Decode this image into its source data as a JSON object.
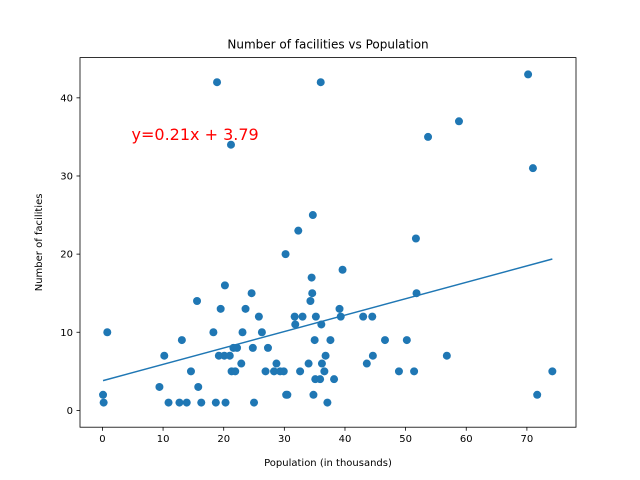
{
  "chart_data": {
    "type": "scatter",
    "title": "Number of facilities vs Population",
    "xlabel": "Population (in thousands)",
    "ylabel": "Number of facilities",
    "xlim": [
      -3.7,
      78.1
    ],
    "ylim": [
      -2.15,
      45.15
    ],
    "xticks": [
      0,
      10,
      20,
      30,
      40,
      50,
      60,
      70
    ],
    "yticks": [
      0,
      10,
      20,
      30,
      40
    ],
    "grid": false,
    "legend": "none",
    "point_color": "#1f77b4",
    "points": [
      [
        0.1,
        2
      ],
      [
        0.2,
        1
      ],
      [
        0.8,
        10
      ],
      [
        9.4,
        3
      ],
      [
        10.2,
        7
      ],
      [
        10.9,
        1
      ],
      [
        12.7,
        1
      ],
      [
        13.1,
        9
      ],
      [
        13.9,
        1
      ],
      [
        14.6,
        5
      ],
      [
        15.6,
        14
      ],
      [
        15.8,
        3
      ],
      [
        16.3,
        1
      ],
      [
        18.3,
        10
      ],
      [
        18.7,
        1
      ],
      [
        18.9,
        42
      ],
      [
        19.2,
        7
      ],
      [
        19.5,
        13
      ],
      [
        20.1,
        7
      ],
      [
        20.2,
        16
      ],
      [
        20.3,
        1
      ],
      [
        21.0,
        7
      ],
      [
        21.2,
        34
      ],
      [
        21.3,
        5
      ],
      [
        21.6,
        8
      ],
      [
        21.9,
        5
      ],
      [
        22.2,
        8
      ],
      [
        22.9,
        6
      ],
      [
        23.1,
        10
      ],
      [
        23.6,
        13
      ],
      [
        24.6,
        15
      ],
      [
        24.8,
        8
      ],
      [
        25.0,
        1
      ],
      [
        25.8,
        12
      ],
      [
        26.3,
        10
      ],
      [
        26.9,
        5
      ],
      [
        27.3,
        8
      ],
      [
        28.3,
        5
      ],
      [
        28.7,
        6
      ],
      [
        29.3,
        5
      ],
      [
        29.9,
        5
      ],
      [
        30.2,
        20
      ],
      [
        30.3,
        2
      ],
      [
        30.5,
        2
      ],
      [
        31.7,
        12
      ],
      [
        31.8,
        11
      ],
      [
        32.3,
        23
      ],
      [
        32.6,
        5
      ],
      [
        33.0,
        12
      ],
      [
        34.0,
        6
      ],
      [
        34.3,
        14
      ],
      [
        34.5,
        17
      ],
      [
        34.6,
        15
      ],
      [
        34.7,
        25
      ],
      [
        34.8,
        2
      ],
      [
        35.0,
        9
      ],
      [
        35.1,
        4
      ],
      [
        35.2,
        12
      ],
      [
        35.9,
        4
      ],
      [
        36.0,
        42
      ],
      [
        36.1,
        11
      ],
      [
        36.2,
        6
      ],
      [
        36.6,
        5
      ],
      [
        36.8,
        7
      ],
      [
        37.1,
        1
      ],
      [
        37.6,
        9
      ],
      [
        38.2,
        4
      ],
      [
        39.1,
        13
      ],
      [
        39.3,
        12
      ],
      [
        39.6,
        18
      ],
      [
        43.0,
        12
      ],
      [
        43.6,
        6
      ],
      [
        44.5,
        12
      ],
      [
        44.6,
        7
      ],
      [
        46.6,
        9
      ],
      [
        48.9,
        5
      ],
      [
        50.2,
        9
      ],
      [
        51.4,
        5
      ],
      [
        51.7,
        22
      ],
      [
        51.8,
        15
      ],
      [
        53.7,
        35
      ],
      [
        56.8,
        7
      ],
      [
        58.8,
        37
      ],
      [
        70.2,
        43
      ],
      [
        71.0,
        31
      ],
      [
        71.7,
        2
      ],
      [
        74.2,
        5
      ]
    ],
    "fit_line": {
      "slope": 0.21,
      "intercept": 3.79,
      "x_start": 0.1,
      "x_end": 74.2,
      "color": "#1f77b4",
      "label": "y=0.21x + 3.79",
      "label_color": "#ff0000",
      "label_x": 4.8,
      "label_y": 34.6
    }
  }
}
